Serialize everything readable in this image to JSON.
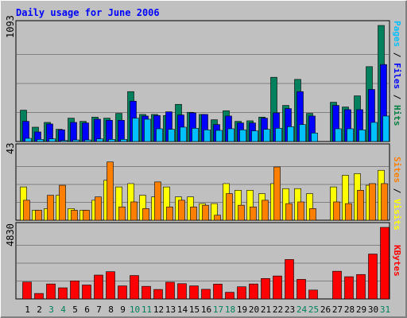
{
  "chart_data": [
    {
      "type": "bar",
      "title": "Daily usage for June 2006",
      "ymax_label": "1093",
      "ylim": [
        0,
        1093
      ],
      "grid": true,
      "right_labels": [
        {
          "text": "Pages",
          "color": "#00c0ff"
        },
        {
          "text": "Files",
          "color": "#0000ff"
        },
        {
          "text": "Hits",
          "color": "#008040"
        }
      ],
      "series": [
        {
          "name": "Hits",
          "color": "#00805c",
          "values": [
            295,
            135,
            180,
            115,
            220,
            190,
            230,
            220,
            265,
            470,
            255,
            255,
            245,
            350,
            275,
            255,
            205,
            290,
            190,
            195,
            230,
            605,
            340,
            585,
            265,
            0,
            370,
            325,
            430,
            705,
            1093
          ]
        },
        {
          "name": "Files",
          "color": "#0000ff",
          "values": [
            190,
            90,
            165,
            110,
            180,
            175,
            210,
            200,
            200,
            380,
            240,
            245,
            280,
            250,
            270,
            255,
            160,
            240,
            175,
            175,
            220,
            270,
            310,
            470,
            240,
            0,
            340,
            300,
            300,
            490,
            725
          ]
        },
        {
          "name": "Pages",
          "color": "#00c0ff",
          "values": [
            30,
            20,
            25,
            10,
            15,
            15,
            25,
            20,
            20,
            220,
            210,
            120,
            115,
            135,
            125,
            110,
            105,
            120,
            110,
            100,
            115,
            125,
            140,
            160,
            80,
            0,
            120,
            120,
            110,
            180,
            240
          ]
        }
      ]
    },
    {
      "type": "bar",
      "ymax_label": "43",
      "ylim": [
        0,
        43
      ],
      "grid": true,
      "right_labels": [
        {
          "text": "Sites",
          "color": "#ff8000"
        },
        {
          "text": "Visits",
          "color": "#ffff00"
        }
      ],
      "series": [
        {
          "name": "Visits",
          "color": "#ffff00",
          "values": [
            20,
            6,
            7,
            15,
            7,
            6,
            12,
            24,
            20,
            22,
            15,
            14,
            20,
            14,
            14,
            10,
            10,
            22,
            18,
            18,
            16,
            22,
            19,
            19,
            16,
            0,
            20,
            27,
            28,
            21,
            30
          ]
        },
        {
          "name": "Sites",
          "color": "#ff8000",
          "values": [
            12,
            6,
            15,
            21,
            6,
            6,
            14,
            35,
            8,
            11,
            7,
            23,
            8,
            12,
            8,
            9,
            3,
            16,
            9,
            8,
            12,
            32,
            10,
            11,
            7,
            0,
            11,
            10,
            18,
            22,
            22
          ]
        }
      ]
    },
    {
      "type": "bar",
      "ymax_label": "4830",
      "ylim": [
        0,
        4830
      ],
      "grid": true,
      "right_labels": [
        {
          "text": "KBytes",
          "color": "#ff0000"
        }
      ],
      "series": [
        {
          "name": "KBytes",
          "color": "#ff0000",
          "values": [
            1140,
            370,
            1010,
            750,
            1220,
            940,
            1610,
            1840,
            880,
            1580,
            850,
            640,
            1130,
            1030,
            880,
            650,
            1000,
            450,
            820,
            1010,
            1380,
            1550,
            2660,
            1320,
            600,
            0,
            1870,
            1500,
            1650,
            3030,
            4830
          ]
        }
      ]
    }
  ],
  "x_axis": {
    "days": [
      "1",
      "2",
      "3",
      "4",
      "5",
      "6",
      "7",
      "8",
      "9",
      "10",
      "11",
      "12",
      "13",
      "14",
      "15",
      "16",
      "17",
      "18",
      "19",
      "20",
      "21",
      "22",
      "23",
      "24",
      "25",
      "26",
      "27",
      "28",
      "29",
      "30",
      "31"
    ],
    "weekend_days": [
      3,
      4,
      10,
      11,
      17,
      18,
      24,
      25,
      31
    ],
    "weekday_color": "#000000",
    "weekend_color": "#00805c"
  },
  "colors": {
    "background": "#c0c0c0",
    "grid": "#808080",
    "title": "#0000ff"
  }
}
